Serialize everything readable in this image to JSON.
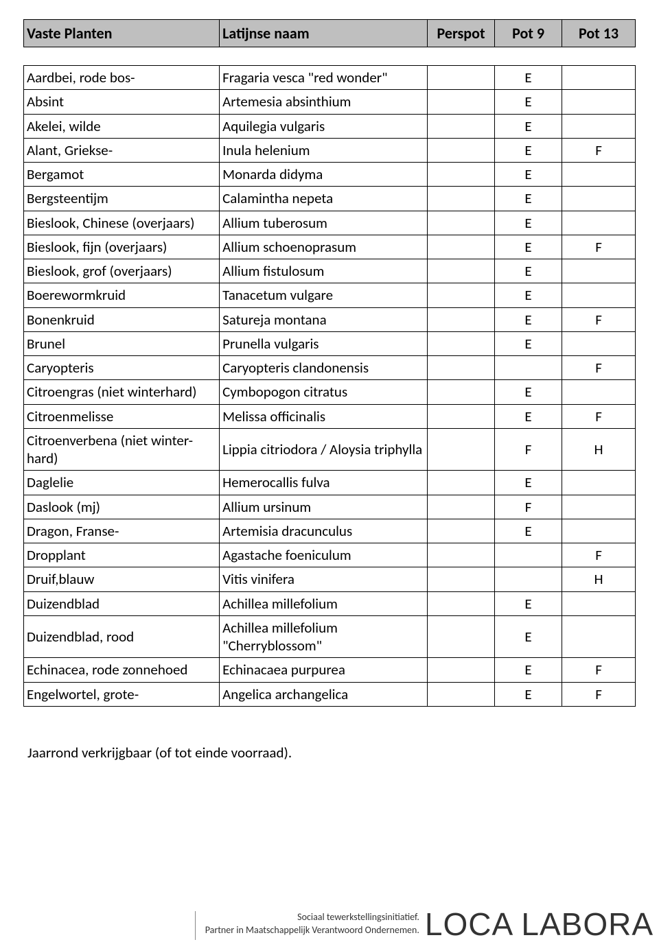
{
  "header": {
    "col1": "Vaste Planten",
    "col2": "Latijnse naam",
    "col3": "Perspot",
    "col4": "Pot 9",
    "col5": "Pot 13"
  },
  "rows": [
    {
      "c1": "Aardbei, rode bos-",
      "c2": "Fragaria vesca \"red wonder\"",
      "c3": "",
      "c4": "E",
      "c5": ""
    },
    {
      "c1": "Absint",
      "c2": "Artemesia absinthium",
      "c3": "",
      "c4": "E",
      "c5": ""
    },
    {
      "c1": "Akelei, wilde",
      "c2": "Aquilegia vulgaris",
      "c3": "",
      "c4": "E",
      "c5": ""
    },
    {
      "c1": "Alant, Griekse-",
      "c2": "Inula helenium",
      "c3": "",
      "c4": "E",
      "c5": "F"
    },
    {
      "c1": "Bergamot",
      "c2": "Monarda didyma",
      "c3": "",
      "c4": "E",
      "c5": ""
    },
    {
      "c1": "Bergsteentijm",
      "c2": "Calamintha nepeta",
      "c3": "",
      "c4": "E",
      "c5": ""
    },
    {
      "c1": "Bieslook, Chinese (overjaars)",
      "c2": "Allium tuberosum",
      "c3": "",
      "c4": "E",
      "c5": ""
    },
    {
      "c1": "Bieslook, fijn (overjaars)",
      "c2": "Allium schoenoprasum",
      "c3": "",
      "c4": "E",
      "c5": "F"
    },
    {
      "c1": "Bieslook, grof (overjaars)",
      "c2": "Allium fistulosum",
      "c3": "",
      "c4": "E",
      "c5": ""
    },
    {
      "c1": "Boerewormkruid",
      "c2": "Tanacetum vulgare",
      "c3": "",
      "c4": "E",
      "c5": ""
    },
    {
      "c1": "Bonenkruid",
      "c2": "Satureja montana",
      "c3": "",
      "c4": "E",
      "c5": "F"
    },
    {
      "c1": "Brunel",
      "c2": "Prunella vulgaris",
      "c3": "",
      "c4": "E",
      "c5": ""
    },
    {
      "c1": "Caryopteris",
      "c2": "Caryopteris clandonensis",
      "c3": "",
      "c4": "",
      "c5": "F"
    },
    {
      "c1": "Citroengras (niet winterhard)",
      "c2": "Cymbopogon citratus",
      "c3": "",
      "c4": "E",
      "c5": ""
    },
    {
      "c1": "Citroenmelisse",
      "c2": "Melissa officinalis",
      "c3": "",
      "c4": "E",
      "c5": "F"
    },
    {
      "c1": "Citroenverbena (niet winter-hard)",
      "c2": "Lippia citriodora /\nAloysia triphylla",
      "c3": "",
      "c4": "F",
      "c5": "H"
    },
    {
      "c1": "Daglelie",
      "c2": "Hemerocallis fulva",
      "c3": "",
      "c4": "E",
      "c5": ""
    },
    {
      "c1": "Daslook (mj)",
      "c2": "Allium ursinum",
      "c3": "",
      "c4": "F",
      "c5": ""
    },
    {
      "c1": "Dragon, Franse-",
      "c2": "Artemisia dracunculus",
      "c3": "",
      "c4": "E",
      "c5": ""
    },
    {
      "c1": "Dropplant",
      "c2": "Agastache foeniculum",
      "c3": "",
      "c4": "",
      "c5": "F"
    },
    {
      "c1": "Druif,blauw",
      "c2": "Vitis vinifera",
      "c3": "",
      "c4": "",
      "c5": "H"
    },
    {
      "c1": "Duizendblad",
      "c2": "Achillea millefolium",
      "c3": "",
      "c4": "E",
      "c5": ""
    },
    {
      "c1": "Duizendblad, rood",
      "c2": "Achillea millefolium \"Cherryblossom\"",
      "c3": "",
      "c4": "E",
      "c5": ""
    },
    {
      "c1": "Echinacea, rode zonnehoed",
      "c2": "Echinacaea purpurea",
      "c3": "",
      "c4": "E",
      "c5": "F"
    },
    {
      "c1": "Engelwortel, grote-",
      "c2": "Angelica archangelica",
      "c3": "",
      "c4": "E",
      "c5": "F"
    }
  ],
  "footnote": "Jaarrond verkrijgbaar (of tot einde voorraad).",
  "footer": {
    "line1": "Sociaal tewerkstellingsinitiatief.",
    "line2": "Partner in Maatschappelijk Verantwoord Ondernemen.",
    "logo": "LOCA LABORA"
  },
  "styling": {
    "header_bg": "#bfbfbf",
    "border_color": "#000000",
    "body_font": "Calibri",
    "header_fontsize": 22,
    "cell_fontsize": 21,
    "footer_text_fontsize": 14,
    "footer_logo_fontsize": 46,
    "page_bg": "#ffffff",
    "column_widths_pct": {
      "vaste": 32,
      "latijn": 34,
      "perspot": 11,
      "pot9": 11,
      "pot13": 12
    }
  }
}
